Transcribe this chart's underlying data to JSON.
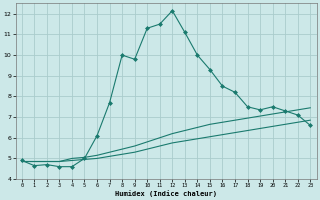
{
  "xlabel": "Humidex (Indice chaleur)",
  "bg_color": "#cce8e8",
  "grid_color": "#aacccc",
  "line_color": "#1a7a6e",
  "xlim": [
    -0.5,
    23.5
  ],
  "ylim": [
    4,
    12.5
  ],
  "xtick_vals": [
    0,
    1,
    2,
    3,
    4,
    5,
    6,
    7,
    8,
    9,
    10,
    11,
    12,
    13,
    14,
    15,
    16,
    17,
    18,
    19,
    20,
    21,
    22,
    23
  ],
  "ytick_vals": [
    4,
    5,
    6,
    7,
    8,
    9,
    10,
    11,
    12
  ],
  "series1_x": [
    0,
    1,
    2,
    3,
    4,
    5,
    6,
    7,
    8,
    9,
    10,
    11,
    12,
    13,
    14,
    15,
    16,
    17,
    18,
    19,
    20,
    21,
    22,
    23
  ],
  "series1_y": [
    4.9,
    4.65,
    4.7,
    4.6,
    4.6,
    5.0,
    6.1,
    7.7,
    10.0,
    9.8,
    11.3,
    11.5,
    12.15,
    11.1,
    10.0,
    9.3,
    8.5,
    8.2,
    7.5,
    7.35,
    7.5,
    7.3,
    7.1,
    6.6
  ],
  "series2_x": [
    0,
    1,
    2,
    3,
    4,
    5,
    6,
    7,
    8,
    9,
    10,
    11,
    12,
    13,
    14,
    15,
    16,
    17,
    18,
    19,
    20,
    21,
    22,
    23
  ],
  "series2_y": [
    4.85,
    4.85,
    4.85,
    4.85,
    5.0,
    5.05,
    5.15,
    5.3,
    5.45,
    5.6,
    5.8,
    6.0,
    6.2,
    6.35,
    6.5,
    6.65,
    6.75,
    6.85,
    6.95,
    7.05,
    7.15,
    7.25,
    7.35,
    7.45
  ],
  "series3_x": [
    0,
    1,
    2,
    3,
    4,
    5,
    6,
    7,
    8,
    9,
    10,
    11,
    12,
    13,
    14,
    15,
    16,
    17,
    18,
    19,
    20,
    21,
    22,
    23
  ],
  "series3_y": [
    4.85,
    4.85,
    4.85,
    4.85,
    4.9,
    4.95,
    5.0,
    5.1,
    5.2,
    5.3,
    5.45,
    5.6,
    5.75,
    5.85,
    5.95,
    6.05,
    6.15,
    6.25,
    6.35,
    6.45,
    6.55,
    6.65,
    6.75,
    6.85
  ]
}
